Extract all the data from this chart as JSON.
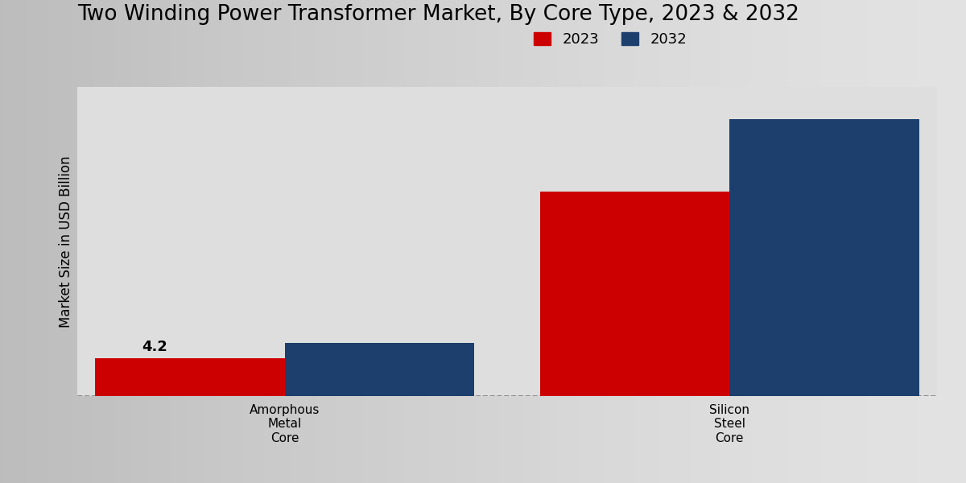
{
  "title": "Two Winding Power Transformer Market, By Core Type, 2023 & 2032",
  "ylabel": "Market Size in USD Billion",
  "categories": [
    "Amorphous\nMetal\nCore",
    "Silicon\nSteel\nCore"
  ],
  "series_2023": [
    4.2,
    22.5
  ],
  "series_2032": [
    5.8,
    30.5
  ],
  "color_2023": "#cc0000",
  "color_2032": "#1c3f6e",
  "bar_label_2023": [
    "4.2",
    ""
  ],
  "background_color_left": "#f0f0f0",
  "background_color_right": "#d0d0d0",
  "title_fontsize": 19,
  "ylabel_fontsize": 12,
  "legend_fontsize": 13,
  "annotation_fontsize": 13,
  "bar_width": 0.32,
  "ylim": [
    0,
    34
  ],
  "bottom_strip_color": "#cc0000"
}
